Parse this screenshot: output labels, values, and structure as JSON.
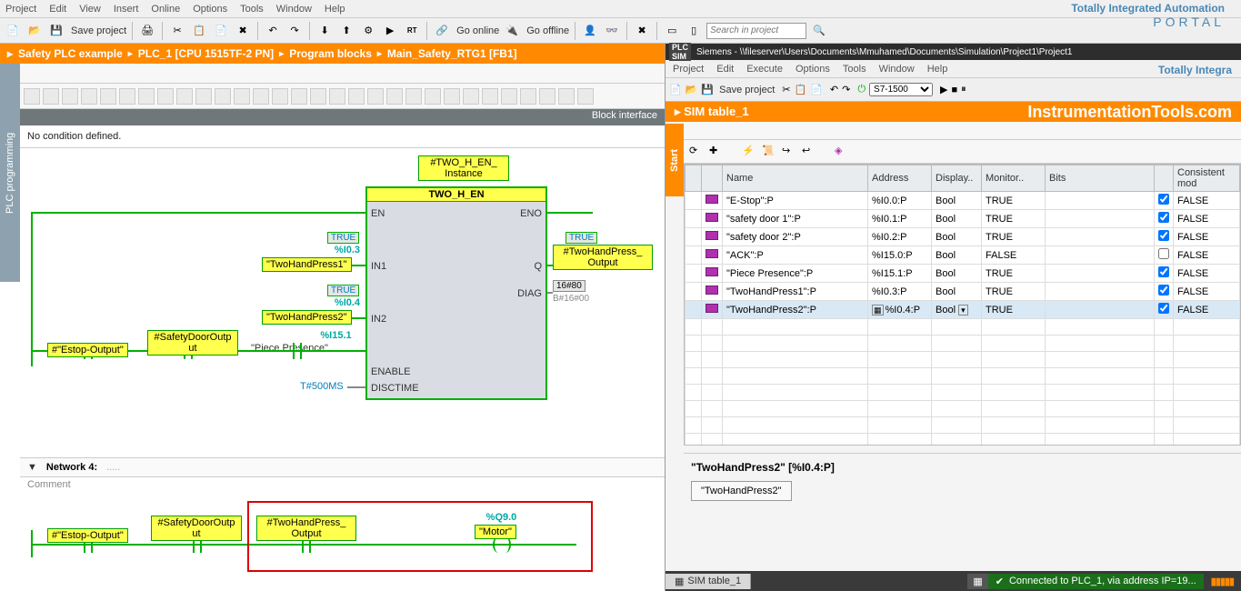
{
  "topMenu": [
    "Project",
    "Edit",
    "View",
    "Insert",
    "Online",
    "Options",
    "Tools",
    "Window",
    "Help"
  ],
  "brand": {
    "l1": "Totally Integrated Automation",
    "l2": "PORTAL"
  },
  "toolbar": {
    "save": "Save project",
    "goOnline": "Go online",
    "goOffline": "Go offline",
    "searchPlaceholder": "Search in project"
  },
  "breadcrumb": [
    "Safety PLC example",
    "PLC_1 [CPU 1515TF-2 PN]",
    "Program blocks",
    "Main_Safety_RTG1 [FB1]"
  ],
  "vtabLeft": "PLC programming",
  "blockInterface": "Block interface",
  "noCond": "No condition defined.",
  "fb": {
    "instance": "#TWO_H_EN_\nInstance",
    "name": "TWO_H_EN",
    "pins": {
      "EN": "EN",
      "ENO": "ENO",
      "IN1": "IN1",
      "IN2": "IN2",
      "Q": "Q",
      "DIAG": "DIAG",
      "ENABLE": "ENABLE",
      "DISCTIME": "DISCTIME"
    },
    "in1": {
      "true": "TRUE",
      "addr": "%I0.3",
      "tag": "\"TwoHandPress1\""
    },
    "in2": {
      "true": "TRUE",
      "addr": "%I0.4",
      "tag": "\"TwoHandPress2\""
    },
    "enable": {
      "addr": "%I15.1",
      "tag": "\"Piece Presence\""
    },
    "disctime": "T#500MS",
    "q": {
      "true": "TRUE",
      "tag": "#TwoHandPress_\nOutput"
    },
    "diag": {
      "val": "16#80",
      "grey": "B#16#00"
    }
  },
  "leftContacts": {
    "estop": "#\"Estop-Output\"",
    "safety": "#SafetyDoorOutp\nut"
  },
  "net4": {
    "title": "Network 4:",
    "comment": "Comment"
  },
  "net4tags": {
    "estop": "#\"Estop-Output\"",
    "safety": "#SafetyDoorOutp\nut",
    "two": "#TwoHandPress_\nOutput",
    "motorAddr": "%Q9.0",
    "motor": "\"Motor\""
  },
  "rightTitleBar": {
    "app": "PLC\nSIM",
    "text": "Siemens  -  \\\\fileserver\\Users\\Documents\\Mmuhamed\\Documents\\Simulation\\Project1\\Project1"
  },
  "rightMenu": [
    "Project",
    "Edit",
    "Execute",
    "Options",
    "Tools",
    "Window",
    "Help"
  ],
  "rightBrand": "Totally Integra",
  "rightToolbar": {
    "save": "Save project",
    "device": "S7-1500"
  },
  "orangeBar": {
    "left": "SIM table_1",
    "right": "InstrumentationTools.com"
  },
  "vtabRight": "Start",
  "simColumns": [
    "",
    "",
    "Name",
    "Address",
    "Display..",
    "Monitor..",
    "Bits",
    "",
    "Consistent mod"
  ],
  "simRows": [
    {
      "name": "\"E-Stop\":P",
      "addr": "%I0.0:P",
      "fmt": "Bool",
      "mon": "TRUE",
      "chk": true,
      "cons": "FALSE"
    },
    {
      "name": "\"safety door 1\":P",
      "addr": "%I0.1:P",
      "fmt": "Bool",
      "mon": "TRUE",
      "chk": true,
      "cons": "FALSE"
    },
    {
      "name": "\"safety door 2\":P",
      "addr": "%I0.2:P",
      "fmt": "Bool",
      "mon": "TRUE",
      "chk": true,
      "cons": "FALSE"
    },
    {
      "name": "\"ACK\":P",
      "addr": "%I15.0:P",
      "fmt": "Bool",
      "mon": "FALSE",
      "chk": false,
      "cons": "FALSE"
    },
    {
      "name": "\"Piece Presence\":P",
      "addr": "%I15.1:P",
      "fmt": "Bool",
      "mon": "TRUE",
      "chk": true,
      "cons": "FALSE"
    },
    {
      "name": "\"TwoHandPress1\":P",
      "addr": "%I0.3:P",
      "fmt": "Bool",
      "mon": "TRUE",
      "chk": true,
      "cons": "FALSE"
    },
    {
      "name": "\"TwoHandPress2\":P",
      "addr": "%I0.4:P",
      "fmt": "Bool",
      "mon": "TRUE",
      "chk": true,
      "cons": "FALSE",
      "sel": true
    }
  ],
  "detail": {
    "hdr": "\"TwoHandPress2\" [%I0.4:P]",
    "btn": "\"TwoHandPress2\""
  },
  "status": {
    "tab": "SIM table_1",
    "conn": "Connected to PLC_1, via address IP=19..."
  }
}
